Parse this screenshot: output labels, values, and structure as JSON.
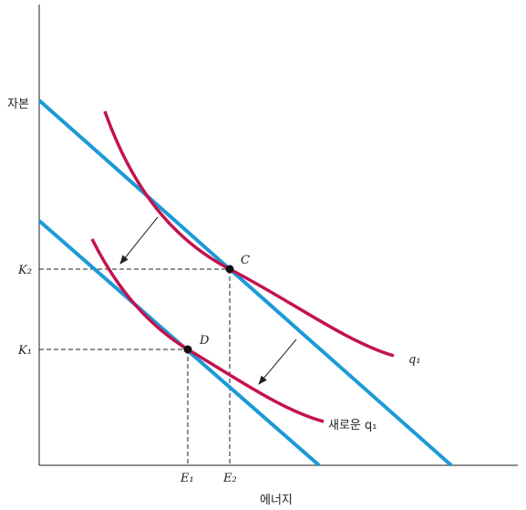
{
  "axes": {
    "y_label": "자본",
    "x_label": "에너지"
  },
  "ticks": {
    "y": [
      "K₂",
      "K₁"
    ],
    "x": [
      "E₁",
      "E₂"
    ]
  },
  "points": [
    "C",
    "D"
  ],
  "curves": [
    "q₁",
    "새로운 q₁"
  ]
}
